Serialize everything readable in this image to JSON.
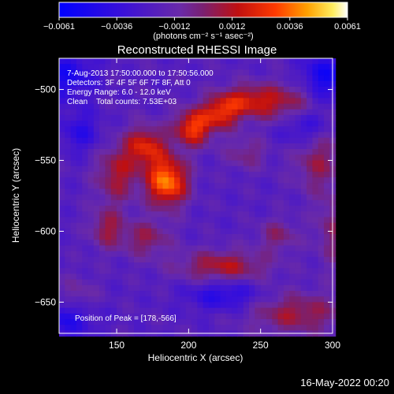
{
  "chart_data": {
    "type": "heatmap",
    "title": "Reconstructed RHESSI Image",
    "xlabel": "Heliocentric X (arcsec)",
    "ylabel": "Heliocentric Y (arcsec)",
    "xlim": [
      110,
      300
    ],
    "ylim": [
      -672,
      -478
    ],
    "x_ticks": [
      150,
      200,
      250,
      300
    ],
    "y_ticks": [
      -500,
      -550,
      -600,
      -650
    ],
    "colorbar": {
      "min": -0.0061,
      "max": 0.0061,
      "ticks": [
        "-0.0061",
        "-0.0036",
        "-0.0012",
        "0.0012",
        "0.0036",
        "0.0061"
      ],
      "units": "(photons cm⁻² s⁻¹ asec⁻²)",
      "colormap": "blue-purple-red-yellow-white"
    },
    "annotations": [
      "7-Aug-2013 17:50:00.000 to 17:50:56.000",
      "Detectors: 3F 4F 5F 6F 7F 8F, Att 0",
      "Energy Range: 6.0 - 12.0 keV",
      "Clean    Total counts: 7.53E+03"
    ],
    "peak_label": "Position of Peak = [178,-566]",
    "peak": [
      178,
      -566
    ],
    "sources": [
      {
        "x": 185,
        "y": -565,
        "amp": 0.006,
        "sx": 10,
        "sy": 12
      },
      {
        "x": 203,
        "y": -527,
        "amp": 0.0048,
        "sx": 9,
        "sy": 9
      },
      {
        "x": 170,
        "y": -540,
        "amp": 0.004,
        "sx": 10,
        "sy": 10
      },
      {
        "x": 222,
        "y": -517,
        "amp": 0.0038,
        "sx": 9,
        "sy": 8
      },
      {
        "x": 240,
        "y": -508,
        "amp": 0.0034,
        "sx": 14,
        "sy": 8
      },
      {
        "x": 150,
        "y": -560,
        "amp": 0.003,
        "sx": 10,
        "sy": 14
      },
      {
        "x": 143,
        "y": -598,
        "amp": 0.0026,
        "sx": 8,
        "sy": 10
      },
      {
        "x": 270,
        "y": -510,
        "amp": 0.0028,
        "sx": 16,
        "sy": 10
      },
      {
        "x": 224,
        "y": -625,
        "amp": 0.0032,
        "sx": 22,
        "sy": 8
      },
      {
        "x": 275,
        "y": -658,
        "amp": 0.0028,
        "sx": 24,
        "sy": 10
      },
      {
        "x": 290,
        "y": -550,
        "amp": 0.0024,
        "sx": 12,
        "sy": 16
      },
      {
        "x": 262,
        "y": -603,
        "amp": 0.002,
        "sx": 10,
        "sy": 8
      },
      {
        "x": 122,
        "y": -648,
        "amp": 0.002,
        "sx": 10,
        "sy": 10
      },
      {
        "x": 170,
        "y": -605,
        "amp": 0.0024,
        "sx": 12,
        "sy": 9
      },
      {
        "x": 300,
        "y": -600,
        "amp": 0.002,
        "sx": 8,
        "sy": 18
      },
      {
        "x": 240,
        "y": -545,
        "amp": 0.0018,
        "sx": 10,
        "sy": 8
      },
      {
        "x": 115,
        "y": -490,
        "amp": -0.0028,
        "sx": 14,
        "sy": 12
      },
      {
        "x": 295,
        "y": -492,
        "amp": -0.0032,
        "sx": 12,
        "sy": 12
      },
      {
        "x": 115,
        "y": -660,
        "amp": -0.003,
        "sx": 14,
        "sy": 10
      },
      {
        "x": 280,
        "y": -525,
        "amp": -0.0024,
        "sx": 12,
        "sy": 10
      },
      {
        "x": 225,
        "y": -645,
        "amp": -0.0024,
        "sx": 18,
        "sy": 8
      },
      {
        "x": 125,
        "y": -530,
        "amp": -0.002,
        "sx": 10,
        "sy": 10
      }
    ]
  },
  "footer": {
    "timestamp": "16-May-2022 00:20"
  }
}
